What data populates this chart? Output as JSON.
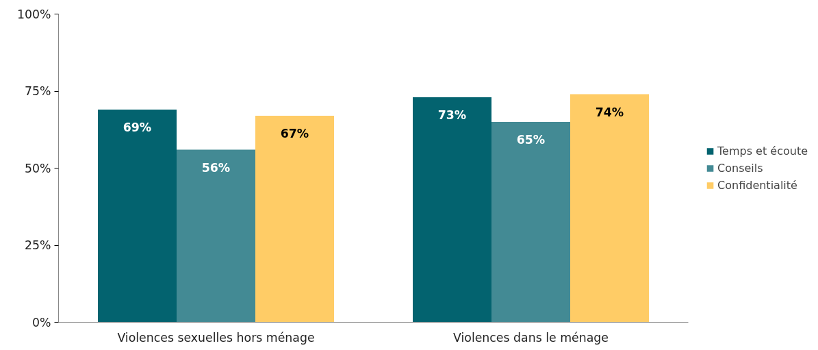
{
  "chart_data": {
    "type": "bar",
    "categories": [
      "Violences sexuelles hors ménage",
      "Violences dans le ménage"
    ],
    "series": [
      {
        "name": "Temps et écoute",
        "color": "#03636f",
        "values": [
          69,
          73
        ],
        "value_labels": [
          "69%",
          "73%"
        ]
      },
      {
        "name": "Conseils",
        "color": "#438a94",
        "values": [
          56,
          65
        ],
        "value_labels": [
          "56%",
          "65%"
        ]
      },
      {
        "name": "Confidentialité",
        "color": "#ffcc66",
        "values": [
          67,
          74
        ],
        "value_labels": [
          "67%",
          "74%"
        ]
      }
    ],
    "ylim": [
      0,
      100
    ],
    "yticks": [
      {
        "value": 0,
        "label": "0%"
      },
      {
        "value": 25,
        "label": "25%"
      },
      {
        "value": 50,
        "label": "50%"
      },
      {
        "value": 75,
        "label": "75%"
      },
      {
        "value": 100,
        "label": "100%"
      }
    ],
    "grid": false,
    "legend": "right"
  }
}
